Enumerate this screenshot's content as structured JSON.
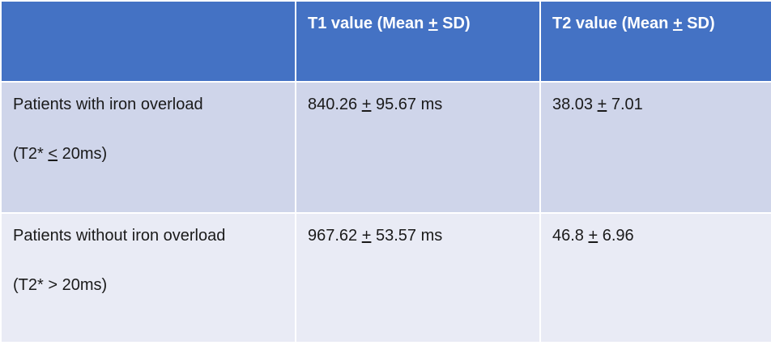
{
  "table": {
    "header": [
      "T1 value (Mean + SD)",
      "T2 value (Mean + SD)"
    ],
    "rows": [
      {
        "label": [
          "Patients with iron overload",
          "(T2* < 20ms)"
        ],
        "cells": [
          "840.26 + 95.67 ms",
          "38.03 + 7.01"
        ]
      },
      {
        "label": [
          "Patients without iron overload",
          "(T2* > 20ms)"
        ],
        "cells": [
          "967.62 + 53.57 ms",
          "46.8 + 6.96"
        ]
      }
    ]
  }
}
